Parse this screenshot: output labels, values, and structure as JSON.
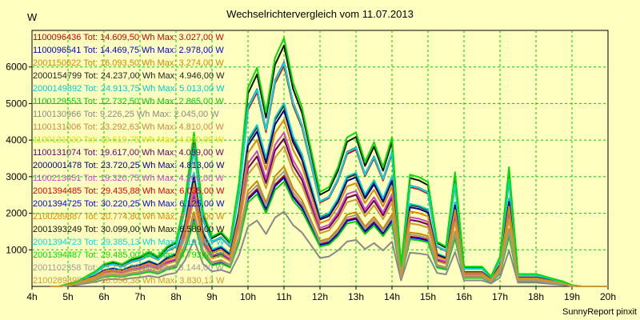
{
  "chart_data": {
    "type": "line",
    "title": "Wechselrichtervergleich vom 11.07.2013",
    "ylabel": "W",
    "footer": "SunnyReport pinxit",
    "x_ticks": [
      "4h",
      "5h",
      "6h",
      "7h",
      "8h",
      "9h",
      "10h",
      "11h",
      "12h",
      "13h",
      "14h",
      "15h",
      "16h",
      "17h",
      "18h",
      "19h",
      "20h"
    ],
    "xlim": [
      4,
      20
    ],
    "y_ticks": [
      1000,
      2000,
      3000,
      4000,
      5000,
      6000
    ],
    "ylim": [
      0,
      7000
    ],
    "grid": true,
    "legend_position": "top-left",
    "x": [
      4.5,
      4.75,
      5,
      5.25,
      5.5,
      5.75,
      6,
      6.25,
      6.5,
      6.75,
      7,
      7.25,
      7.5,
      7.75,
      8,
      8.25,
      8.5,
      8.75,
      9,
      9.25,
      9.5,
      9.75,
      10,
      10.25,
      10.5,
      10.75,
      11,
      11.25,
      11.5,
      11.75,
      12,
      12.25,
      12.5,
      12.75,
      13,
      13.25,
      13.5,
      13.75,
      14,
      14.25,
      14.5,
      14.75,
      15,
      15.25,
      15.5,
      15.75,
      16,
      16.25,
      16.5,
      16.75,
      17,
      17.25,
      17.5,
      17.75,
      18,
      18.25,
      18.5,
      18.75,
      19,
      19.25,
      19.5,
      19.75,
      20
    ],
    "series": [
      {
        "name": "1100096436 Tot: 14.609,50 Wh Max: 3.027,00 W",
        "color": "#cc0000",
        "max": 3027
      },
      {
        "name": "1100096541 Tot: 14.469,75 Wh Max: 2.978,00 W",
        "color": "#0000cc",
        "max": 2978
      },
      {
        "name": "2001150622 Tot: 16.093,50 Wh Max: 3.274,00 W",
        "color": "#cc8800",
        "max": 3274
      },
      {
        "name": "2000154799 Tot: 24.237,00 Wh Max: 4.946,00 W",
        "color": "#222222",
        "max": 4946
      },
      {
        "name": "2000149892 Tot: 24.913,75 Wh Max: 5.013,00 W",
        "color": "#00cccc",
        "max": 5013
      },
      {
        "name": "1100129553 Tot: 12.732,50 Wh Max: 2.865,00 W",
        "color": "#00cc00",
        "max": 2865
      },
      {
        "name": "1100130966 Tot: 9.226,25 Wh Max: 2.045,00 W",
        "color": "#888888",
        "max": 2045
      },
      {
        "name": "1100131006 Tot: 23.292,63 Wh Max: 4.810,00 W",
        "color": "#cc8844",
        "max": 4810
      },
      {
        "name": "1100131030 Tot: 19.619,75 Wh Max: 4.060,00 W",
        "color": "#dddd00",
        "max": 4060
      },
      {
        "name": "1100131074 Tot: 19.617,00 Wh Max: 4.039,00 W",
        "color": "#660066",
        "max": 4039
      },
      {
        "name": "2000001478 Tot: 23.720,25 Wh Max: 4.813,00 W",
        "color": "#000088",
        "max": 4813
      },
      {
        "name": "1100213451 Tot: 19.320,75 Wh Max: 4.206,00 W",
        "color": "#cc44cc",
        "max": 4206
      },
      {
        "name": "2001394485 Tot: 29.435,88 Wh Max: 6.035,00 W",
        "color": "#dd0000",
        "max": 6035
      },
      {
        "name": "2001394725 Tot: 30.220,25 Wh Max: 6.125,00 W",
        "color": "#0000dd",
        "max": 6125
      },
      {
        "name": "2100289887 Tot: 20.774,80 Wh Max: 4.556,00 W",
        "color": "#dd8800",
        "max": 4556
      },
      {
        "name": "2001393249 Tot: 30.099,00 Wh Max: 6.589,00 W",
        "color": "#111111",
        "max": 6589
      },
      {
        "name": "2001394723 Tot: 29.385,13 Wh Max: 6.107,00 W",
        "color": "#00dddd",
        "max": 6107
      },
      {
        "name": "2001394487 Tot: 29.485,00 Wh Max: 6.793,00 W",
        "color": "#00dd00",
        "max": 6793
      },
      {
        "name": "2001102358 Tot: 15.133,38 Wh Max: 3.144,00 W",
        "color": "#999999",
        "max": 3144
      },
      {
        "name": "2100289898 Tot: 18.056,38 Wh Max: 3.830,13 W",
        "color": "#cc9933",
        "max": 3830
      }
    ],
    "profile": [
      0.0,
      0.0,
      0.01,
      0.02,
      0.04,
      0.06,
      0.09,
      0.1,
      0.09,
      0.11,
      0.12,
      0.14,
      0.12,
      0.16,
      0.18,
      0.35,
      0.62,
      0.3,
      0.2,
      0.22,
      0.18,
      0.42,
      0.8,
      0.88,
      0.7,
      0.92,
      1.0,
      0.82,
      0.72,
      0.55,
      0.38,
      0.4,
      0.48,
      0.6,
      0.62,
      0.5,
      0.58,
      0.48,
      0.6,
      0.08,
      0.45,
      0.44,
      0.42,
      0.18,
      0.16,
      0.46,
      0.08,
      0.08,
      0.08,
      0.04,
      0.12,
      0.48,
      0.05,
      0.05,
      0.05,
      0.04,
      0.03,
      0.02,
      0.005,
      0.0,
      0.0,
      0.0,
      0.0
    ]
  }
}
